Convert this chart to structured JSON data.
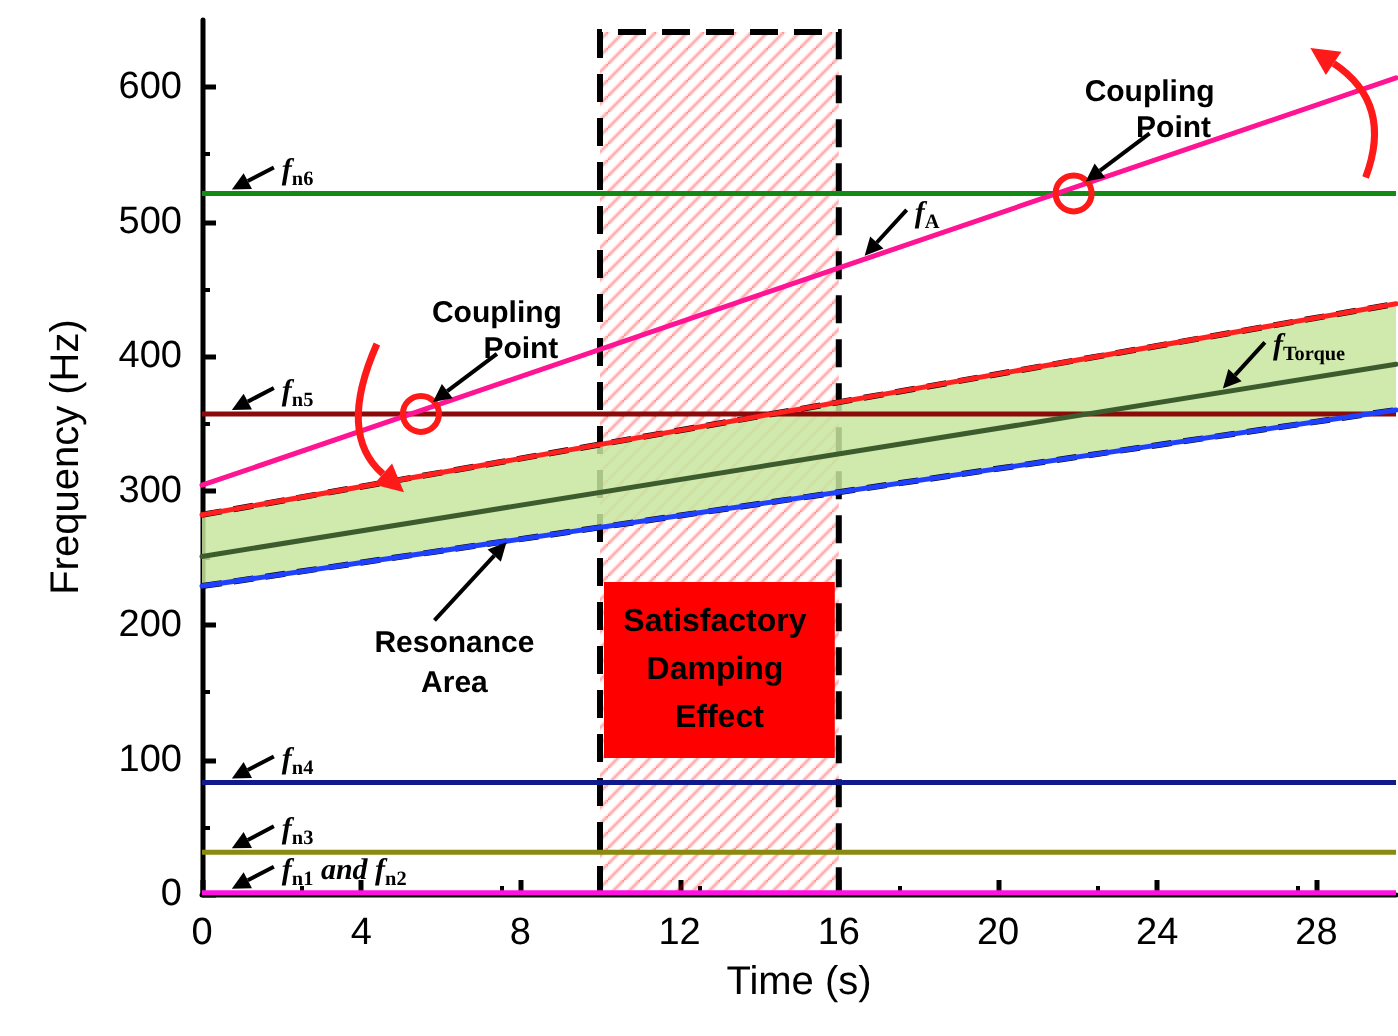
{
  "chart_data": {
    "type": "line",
    "xlabel": "Time (s)",
    "ylabel": "Frequency (Hz)",
    "xlim": [
      0,
      30
    ],
    "xticks": [
      0,
      4,
      8,
      12,
      16,
      20,
      24,
      28
    ],
    "ylim": [
      0,
      650
    ],
    "yticks": [
      0,
      100,
      200,
      300,
      400,
      500,
      600
    ],
    "x": [
      0,
      30
    ],
    "grid": false,
    "legend": false,
    "marker": "none",
    "line_style": "solid",
    "series": [
      {
        "name": "f$_{A}$",
        "color": "#ff1493",
        "values": [
          304,
          607
        ]
      },
      {
        "name": "f$_{Torque}$",
        "color": "#3d5c2e",
        "values": [
          251,
          394
        ],
        "lower": [
          229,
          360
        ],
        "upper": [
          282,
          439
        ]
      },
      {
        "color": "#ff2020",
        "values": [
          282,
          439
        ]
      },
      {
        "color": "#2040ff",
        "values": [
          229,
          360
        ]
      }
    ],
    "ref_lines": [
      {
        "axis": "y",
        "value": 521,
        "label": "f$_{n6}$",
        "color": "#138a13"
      },
      {
        "axis": "y",
        "value": 357,
        "label": "f$_{n5}$",
        "color": "#8b0a0a"
      },
      {
        "axis": "y",
        "value": 83,
        "label": "f$_{n4}$",
        "color": "#101a8a"
      },
      {
        "axis": "y",
        "value": 31,
        "label": "f$_{n3}$",
        "color": "#8a8a10"
      },
      {
        "axis": "y",
        "value": 1,
        "label": "f$_{n1}$ and f$_{n2}$",
        "color": "#ff10e0"
      }
    ],
    "bands": [
      {
        "axis": "x",
        "from": 10,
        "to": 16,
        "label": "Satisfactory Damping Effect",
        "color": "#ff0000"
      }
    ],
    "annotations": [
      {
        "text": "Coupling Point",
        "x": 5.5,
        "y": 357
      },
      {
        "text": "Coupling Point",
        "x": 21.9,
        "y": 521
      },
      {
        "text": "Resonance Area",
        "x": 7.7,
        "y": 263
      }
    ]
  }
}
